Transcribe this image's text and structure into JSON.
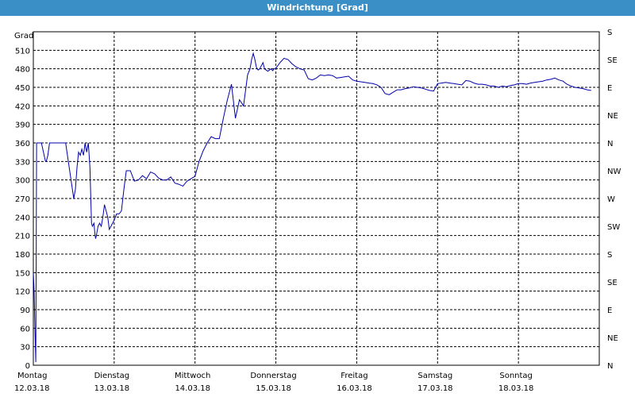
{
  "window": {
    "title": "Windrichtung [Grad]"
  },
  "chart_data": {
    "type": "line",
    "ylabel": "Grad",
    "ylim": [
      0,
      540
    ],
    "yticks": [
      0,
      30,
      60,
      90,
      120,
      150,
      180,
      210,
      240,
      270,
      300,
      330,
      360,
      390,
      420,
      450,
      480,
      510
    ],
    "y2ticks": [
      {
        "value": 0,
        "label": "N"
      },
      {
        "value": 45,
        "label": "NE"
      },
      {
        "value": 90,
        "label": "E"
      },
      {
        "value": 135,
        "label": "SE"
      },
      {
        "value": 180,
        "label": "S"
      },
      {
        "value": 225,
        "label": "SW"
      },
      {
        "value": 270,
        "label": "W"
      },
      {
        "value": 315,
        "label": "NW"
      },
      {
        "value": 360,
        "label": "N"
      },
      {
        "value": 405,
        "label": "NE"
      },
      {
        "value": 450,
        "label": "E"
      },
      {
        "value": 495,
        "label": "SE"
      },
      {
        "value": 540,
        "label": "S"
      }
    ],
    "xlim": [
      0,
      7
    ],
    "xticks": [
      {
        "day": "Montag",
        "date": "12.03.18"
      },
      {
        "day": "Dienstag",
        "date": "13.03.18"
      },
      {
        "day": "Mittwoch",
        "date": "14.03.18"
      },
      {
        "day": "Donnerstag",
        "date": "15.03.18"
      },
      {
        "day": "Freitag",
        "date": "16.03.18"
      },
      {
        "day": "Samstag",
        "date": "17.03.18"
      },
      {
        "day": "Sonntag",
        "date": "18.03.18"
      }
    ],
    "grid": true,
    "series": [
      {
        "color": "#0000aa",
        "x": [
          0.0,
          0.01,
          0.02,
          0.03,
          0.04,
          0.06,
          0.1,
          0.15,
          0.16,
          0.18,
          0.2,
          0.22,
          0.25,
          0.3,
          0.4,
          0.5,
          0.52,
          0.54,
          0.56,
          0.58,
          0.6,
          0.62,
          0.64,
          0.66,
          0.68,
          0.7,
          0.72,
          0.73,
          0.75,
          0.76,
          0.77,
          0.78,
          0.8,
          0.82,
          0.84,
          0.86,
          0.88,
          0.9,
          0.92,
          0.94,
          0.96,
          0.98,
          1.0,
          1.03,
          1.06,
          1.09,
          1.12,
          1.15,
          1.2,
          1.25,
          1.3,
          1.35,
          1.4,
          1.45,
          1.5,
          1.55,
          1.6,
          1.65,
          1.7,
          1.75,
          1.8,
          1.85,
          1.9,
          1.95,
          2.0,
          2.05,
          2.1,
          2.15,
          2.2,
          2.25,
          2.3,
          2.35,
          2.4,
          2.45,
          2.5,
          2.55,
          2.6,
          2.63,
          2.65,
          2.68,
          2.7,
          2.72,
          2.74,
          2.76,
          2.78,
          2.8,
          2.82,
          2.84,
          2.86,
          2.88,
          2.9,
          2.92,
          2.94,
          2.96,
          2.98,
          3.0,
          3.05,
          3.1,
          3.15,
          3.2,
          3.25,
          3.3,
          3.35,
          3.4,
          3.45,
          3.5,
          3.55,
          3.6,
          3.65,
          3.7,
          3.75,
          3.8,
          3.85,
          3.9,
          3.95,
          4.0,
          4.05,
          4.1,
          4.15,
          4.2,
          4.25,
          4.3,
          4.35,
          4.4,
          4.45,
          4.5,
          4.55,
          4.6,
          4.65,
          4.7,
          4.75,
          4.8,
          4.85,
          4.9,
          4.95,
          5.0,
          5.05,
          5.1,
          5.15,
          5.2,
          5.25,
          5.3,
          5.35,
          5.4,
          5.45,
          5.5,
          5.55,
          5.6,
          5.65,
          5.7,
          5.75,
          5.8,
          5.85,
          5.9,
          5.95,
          6.0,
          6.05,
          6.1,
          6.15,
          6.2,
          6.25,
          6.3,
          6.35,
          6.4,
          6.45,
          6.5,
          6.55,
          6.6,
          6.65,
          6.7,
          6.75,
          6.8,
          6.85,
          6.9
        ],
        "y": [
          150,
          120,
          60,
          5,
          360,
          360,
          360,
          330,
          330,
          340,
          360,
          360,
          360,
          360,
          360,
          270,
          285,
          320,
          345,
          340,
          350,
          340,
          360,
          345,
          360,
          320,
          230,
          225,
          230,
          215,
          205,
          210,
          225,
          230,
          225,
          240,
          260,
          250,
          240,
          220,
          225,
          230,
          235,
          245,
          245,
          250,
          285,
          315,
          315,
          298,
          300,
          307,
          302,
          313,
          310,
          303,
          300,
          300,
          305,
          295,
          293,
          290,
          298,
          302,
          306,
          330,
          347,
          360,
          370,
          367,
          367,
          400,
          430,
          455,
          400,
          430,
          420,
          450,
          470,
          480,
          495,
          505,
          495,
          482,
          478,
          480,
          485,
          490,
          480,
          478,
          476,
          478,
          480,
          477,
          480,
          481,
          490,
          497,
          495,
          488,
          483,
          480,
          478,
          464,
          462,
          465,
          470,
          469,
          470,
          469,
          465,
          466,
          467,
          468,
          462,
          460,
          459,
          458,
          457,
          456,
          454,
          450,
          440,
          438,
          442,
          446,
          446,
          448,
          449,
          451,
          450,
          449,
          447,
          445,
          444,
          456,
          457,
          458,
          457,
          456,
          455,
          454,
          461,
          460,
          457,
          455,
          455,
          454,
          452,
          452,
          450,
          452,
          451,
          453,
          454,
          456,
          456,
          455,
          457,
          458,
          459,
          460,
          462,
          463,
          465,
          462,
          460,
          455,
          452,
          450,
          449,
          448,
          446,
          445
        ]
      }
    ]
  }
}
